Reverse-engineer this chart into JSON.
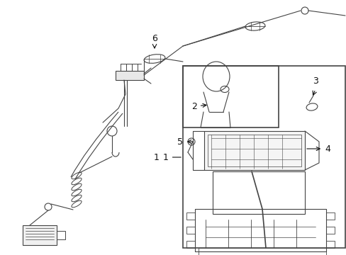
{
  "bg_color": "#ffffff",
  "line_color": "#444444",
  "label_color": "#111111",
  "fig_width": 4.89,
  "fig_height": 3.6,
  "dpi": 100
}
